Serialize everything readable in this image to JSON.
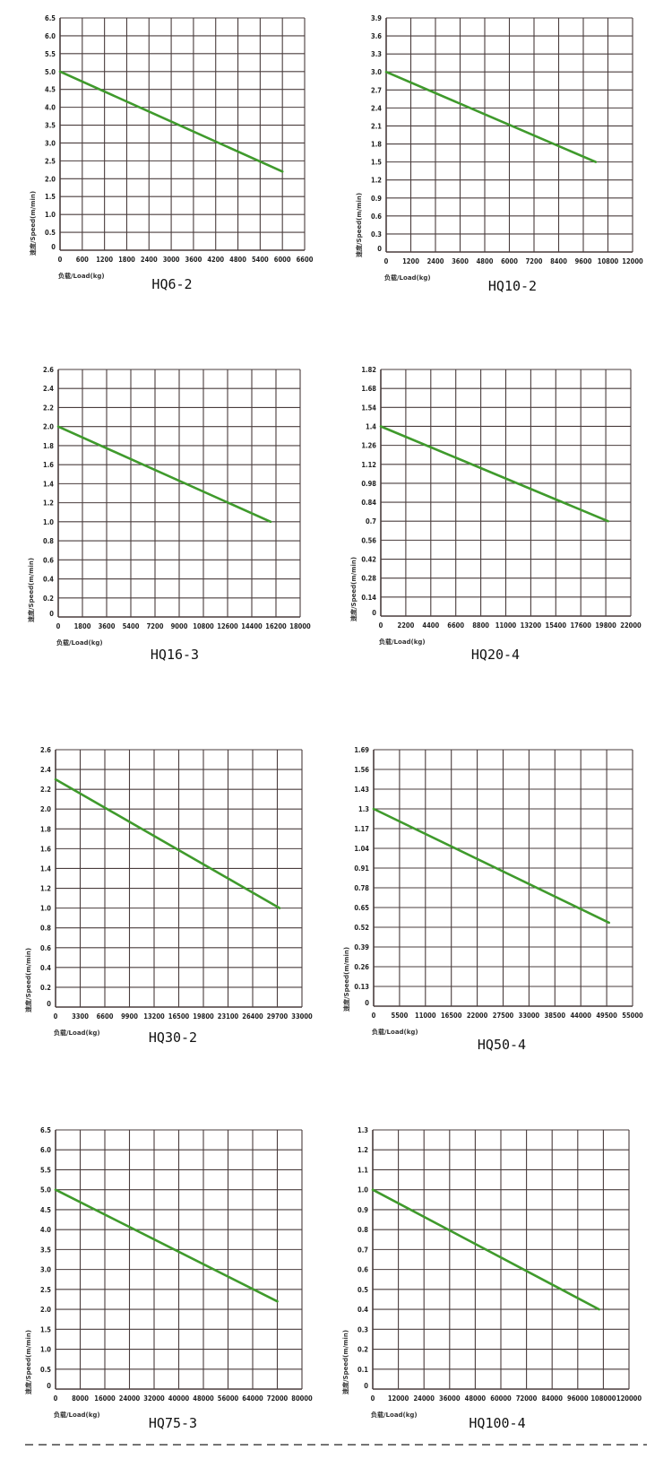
{
  "style": {
    "grid_color": "#4a3d3d",
    "line_color": "#3f9a2c",
    "divider": "dashed"
  },
  "chart_data": [
    {
      "type": "line",
      "title": "HQ6-2",
      "xlabel": "负载/Load(kg)",
      "ylabel": "速度/Speed(m/min)",
      "xlim": [
        0,
        6600
      ],
      "ylim": [
        0,
        6.5
      ],
      "grid": true,
      "xticks": [
        "0",
        "600",
        "1200",
        "1800",
        "2400",
        "3000",
        "3600",
        "4200",
        "4800",
        "5400",
        "6000",
        "6600"
      ],
      "yticks": [
        "0",
        "0.5",
        "1.0",
        "1.5",
        "2.0",
        "2.5",
        "3.0",
        "3.5",
        "4.0",
        "4.5",
        "5.0",
        "5.5",
        "6.0",
        "6.5"
      ],
      "series": [
        {
          "x": [
            0,
            6000
          ],
          "y": [
            5.0,
            2.2
          ]
        }
      ]
    },
    {
      "type": "line",
      "title": "HQ10-2",
      "xlabel": "负载/Load(kg)",
      "ylabel": "速度/Speed(m/min)",
      "xlim": [
        0,
        12000
      ],
      "ylim": [
        0,
        3.9
      ],
      "grid": true,
      "xticks": [
        "0",
        "1200",
        "2400",
        "3600",
        "4800",
        "6000",
        "7200",
        "8400",
        "9600",
        "10800",
        "12000"
      ],
      "yticks": [
        "0",
        "0.3",
        "0.6",
        "0.9",
        "1.2",
        "1.5",
        "1.8",
        "2.1",
        "2.4",
        "2.7",
        "3.0",
        "3.3",
        "3.6",
        "3.9"
      ],
      "series": [
        {
          "x": [
            0,
            10200
          ],
          "y": [
            3.0,
            1.5
          ]
        }
      ]
    },
    {
      "type": "line",
      "title": "HQ16-3",
      "xlabel": "负载/Load(kg)",
      "ylabel": "速度/Speed(m/min)",
      "xlim": [
        0,
        18000
      ],
      "ylim": [
        0,
        2.6
      ],
      "grid": true,
      "xticks": [
        "0",
        "1800",
        "3600",
        "5400",
        "7200",
        "9000",
        "10800",
        "12600",
        "14400",
        "16200",
        "18000"
      ],
      "yticks": [
        "0",
        "0.2",
        "0.4",
        "0.6",
        "0.8",
        "1.0",
        "1.2",
        "1.4",
        "1.6",
        "1.8",
        "2.0",
        "2.2",
        "2.4",
        "2.6"
      ],
      "series": [
        {
          "x": [
            0,
            15800
          ],
          "y": [
            2.0,
            1.0
          ]
        }
      ]
    },
    {
      "type": "line",
      "title": "HQ20-4",
      "xlabel": "负载/Load(kg)",
      "ylabel": "速度/Speed(m/min)",
      "xlim": [
        0,
        22000
      ],
      "ylim": [
        0,
        1.82
      ],
      "grid": true,
      "xticks": [
        "0",
        "2200",
        "4400",
        "6600",
        "8800",
        "11000",
        "13200",
        "15400",
        "17600",
        "19800",
        "22000"
      ],
      "yticks": [
        "0",
        "0.14",
        "0.28",
        "0.42",
        "0.56",
        "0.7",
        "0.84",
        "0.98",
        "1.12",
        "1.26",
        "1.4",
        "1.54",
        "1.68",
        "1.82"
      ],
      "series": [
        {
          "x": [
            0,
            20000
          ],
          "y": [
            1.4,
            0.7
          ]
        }
      ]
    },
    {
      "type": "line",
      "title": "HQ30-2",
      "xlabel": "负载/Load(kg)",
      "ylabel": "速度/Speed(m/min)",
      "xlim": [
        0,
        33000
      ],
      "ylim": [
        0,
        2.6
      ],
      "grid": true,
      "xticks": [
        "0",
        "3300",
        "6600",
        "9900",
        "13200",
        "16500",
        "19800",
        "23100",
        "26400",
        "29700",
        "33000"
      ],
      "yticks": [
        "0",
        "0.2",
        "0.4",
        "0.6",
        "0.8",
        "1.0",
        "1.2",
        "1.4",
        "1.6",
        "1.8",
        "2.0",
        "2.2",
        "2.4",
        "2.6"
      ],
      "series": [
        {
          "x": [
            0,
            30000
          ],
          "y": [
            2.3,
            1.0
          ]
        }
      ]
    },
    {
      "type": "line",
      "title": "HQ50-4",
      "xlabel": "负载/Load(kg)",
      "ylabel": "速度/Speed(m/min)",
      "xlim": [
        0,
        55000
      ],
      "ylim": [
        0,
        1.69
      ],
      "grid": true,
      "xticks": [
        "0",
        "5500",
        "11000",
        "16500",
        "22000",
        "27500",
        "33000",
        "38500",
        "44000",
        "49500",
        "55000"
      ],
      "yticks": [
        "0",
        "0.13",
        "0.26",
        "0.39",
        "0.52",
        "0.65",
        "0.78",
        "0.91",
        "1.04",
        "1.17",
        "1.3",
        "1.43",
        "1.56",
        "1.69"
      ],
      "series": [
        {
          "x": [
            0,
            50000
          ],
          "y": [
            1.3,
            0.55
          ]
        }
      ]
    },
    {
      "type": "line",
      "title": "HQ75-3",
      "xlabel": "负载/Load(kg)",
      "ylabel": "速度/Speed(m/min)",
      "xlim": [
        0,
        80000
      ],
      "ylim": [
        0,
        6.5
      ],
      "grid": true,
      "xticks": [
        "0",
        "8000",
        "16000",
        "24000",
        "32000",
        "40000",
        "48000",
        "56000",
        "64000",
        "72000",
        "80000"
      ],
      "yticks": [
        "0",
        "0.5",
        "1.0",
        "1.5",
        "2.0",
        "2.5",
        "3.0",
        "3.5",
        "4.0",
        "4.5",
        "5.0",
        "5.5",
        "6.0",
        "6.5"
      ],
      "series": [
        {
          "x": [
            0,
            72000
          ],
          "y": [
            5.0,
            2.2
          ]
        }
      ]
    },
    {
      "type": "line",
      "title": "HQ100-4",
      "xlabel": "负载/Load(kg)",
      "ylabel": "速度/Speed(m/min)",
      "xlim": [
        0,
        120000
      ],
      "ylim": [
        0,
        1.3
      ],
      "grid": true,
      "xticks": [
        "0",
        "12000",
        "24000",
        "36000",
        "48000",
        "60000",
        "72000",
        "84000",
        "96000",
        "108000",
        "120000"
      ],
      "yticks": [
        "0",
        "0.1",
        "0.2",
        "0.3",
        "0.4",
        "0.5",
        "0.6",
        "0.7",
        "0.8",
        "0.9",
        "1.0",
        "1.1",
        "1.2",
        "1.3"
      ],
      "series": [
        {
          "x": [
            0,
            106000
          ],
          "y": [
            1.0,
            0.4
          ]
        }
      ]
    }
  ]
}
